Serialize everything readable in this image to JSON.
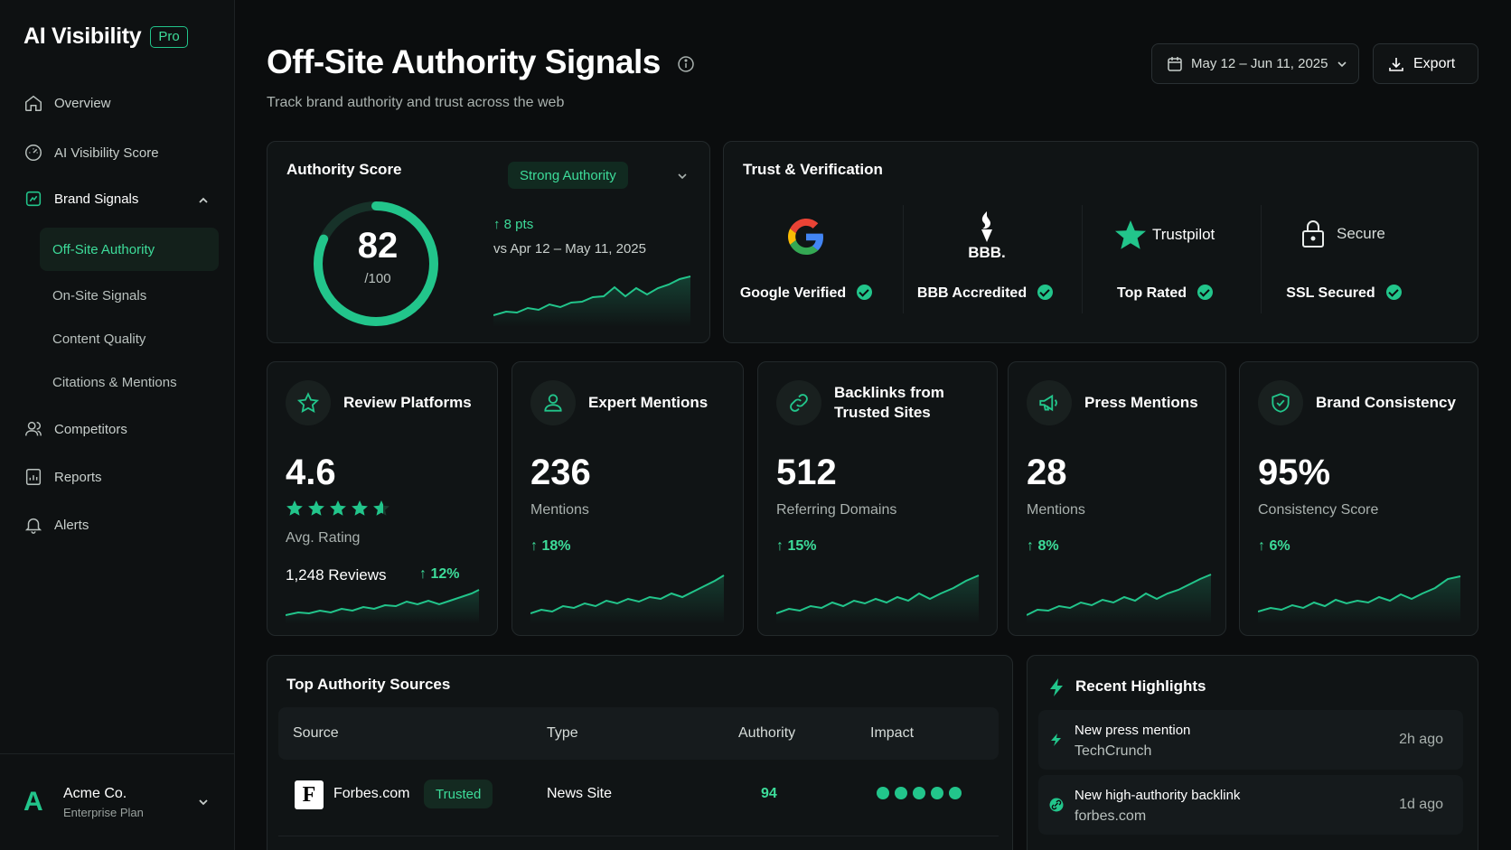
{
  "app": {
    "name": "AI Visibility",
    "badge": "Pro"
  },
  "nav": {
    "overview": "Overview",
    "ai_score": "AI Visibility Score",
    "brand_signals": "Brand Signals",
    "sub": [
      "Off-Site Authority",
      "On-Site Signals",
      "Content Quality",
      "Citations & Mentions"
    ],
    "competitors": "Competitors",
    "reports": "Reports",
    "alerts": "Alerts"
  },
  "account": {
    "logo": "A",
    "name": "Acme Co.",
    "plan": "Enterprise Plan"
  },
  "header": {
    "title": "Off-Site Authority Signals",
    "subtitle": "Track brand authority and trust across the web",
    "date_range": "May 12 – Jun 11, 2025",
    "export": "Export"
  },
  "authority": {
    "title": "Authority Score",
    "badge": "Strong Authority",
    "score": "82",
    "out_of": "/100",
    "score_fraction": 0.82,
    "change": "8 pts",
    "compare": "vs Apr 12 – May 11, 2025"
  },
  "trust": {
    "title": "Trust & Verification",
    "items": [
      {
        "logo": "G",
        "label": "Google Verified"
      },
      {
        "logo": "BBB.",
        "label": "BBB Accredited"
      },
      {
        "logo": "Trustpilot",
        "label": "Top Rated"
      },
      {
        "logo": "Secure",
        "label": "SSL Secured"
      }
    ]
  },
  "metrics": [
    {
      "title": "Review Platforms",
      "value": "4.6",
      "sub": "Avg. Rating",
      "extra": "1,248 Reviews",
      "change": "12%",
      "rating": 4.6
    },
    {
      "title": "Expert Mentions",
      "value": "236",
      "sub": "Mentions",
      "change": "18%"
    },
    {
      "title": "Backlinks from Trusted Sites",
      "value": "512",
      "sub": "Referring Domains",
      "change": "15%"
    },
    {
      "title": "Press Mentions",
      "value": "28",
      "sub": "Mentions",
      "change": "8%"
    },
    {
      "title": "Brand Consistency",
      "value": "95%",
      "sub": "Consistency Score",
      "change": "6%"
    }
  ],
  "sources": {
    "title": "Top Authority Sources",
    "columns": [
      "Source",
      "Type",
      "Authority",
      "Impact"
    ],
    "rows": [
      {
        "logo": "F",
        "name": "Forbes.com",
        "badge": "Trusted",
        "type": "News Site",
        "authority": "94",
        "impact": 5
      }
    ]
  },
  "highlights": {
    "title": "Recent Highlights",
    "items": [
      {
        "title": "New press mention",
        "sub": "TechCrunch",
        "time": "2h ago"
      },
      {
        "title": "New high-authority backlink",
        "sub": "forbes.com",
        "time": "1d ago"
      }
    ]
  },
  "colors": {
    "accent": "#22c58b",
    "accent_text": "#3ddc9a",
    "bg": "#0b0d0e",
    "card": "#101415"
  }
}
